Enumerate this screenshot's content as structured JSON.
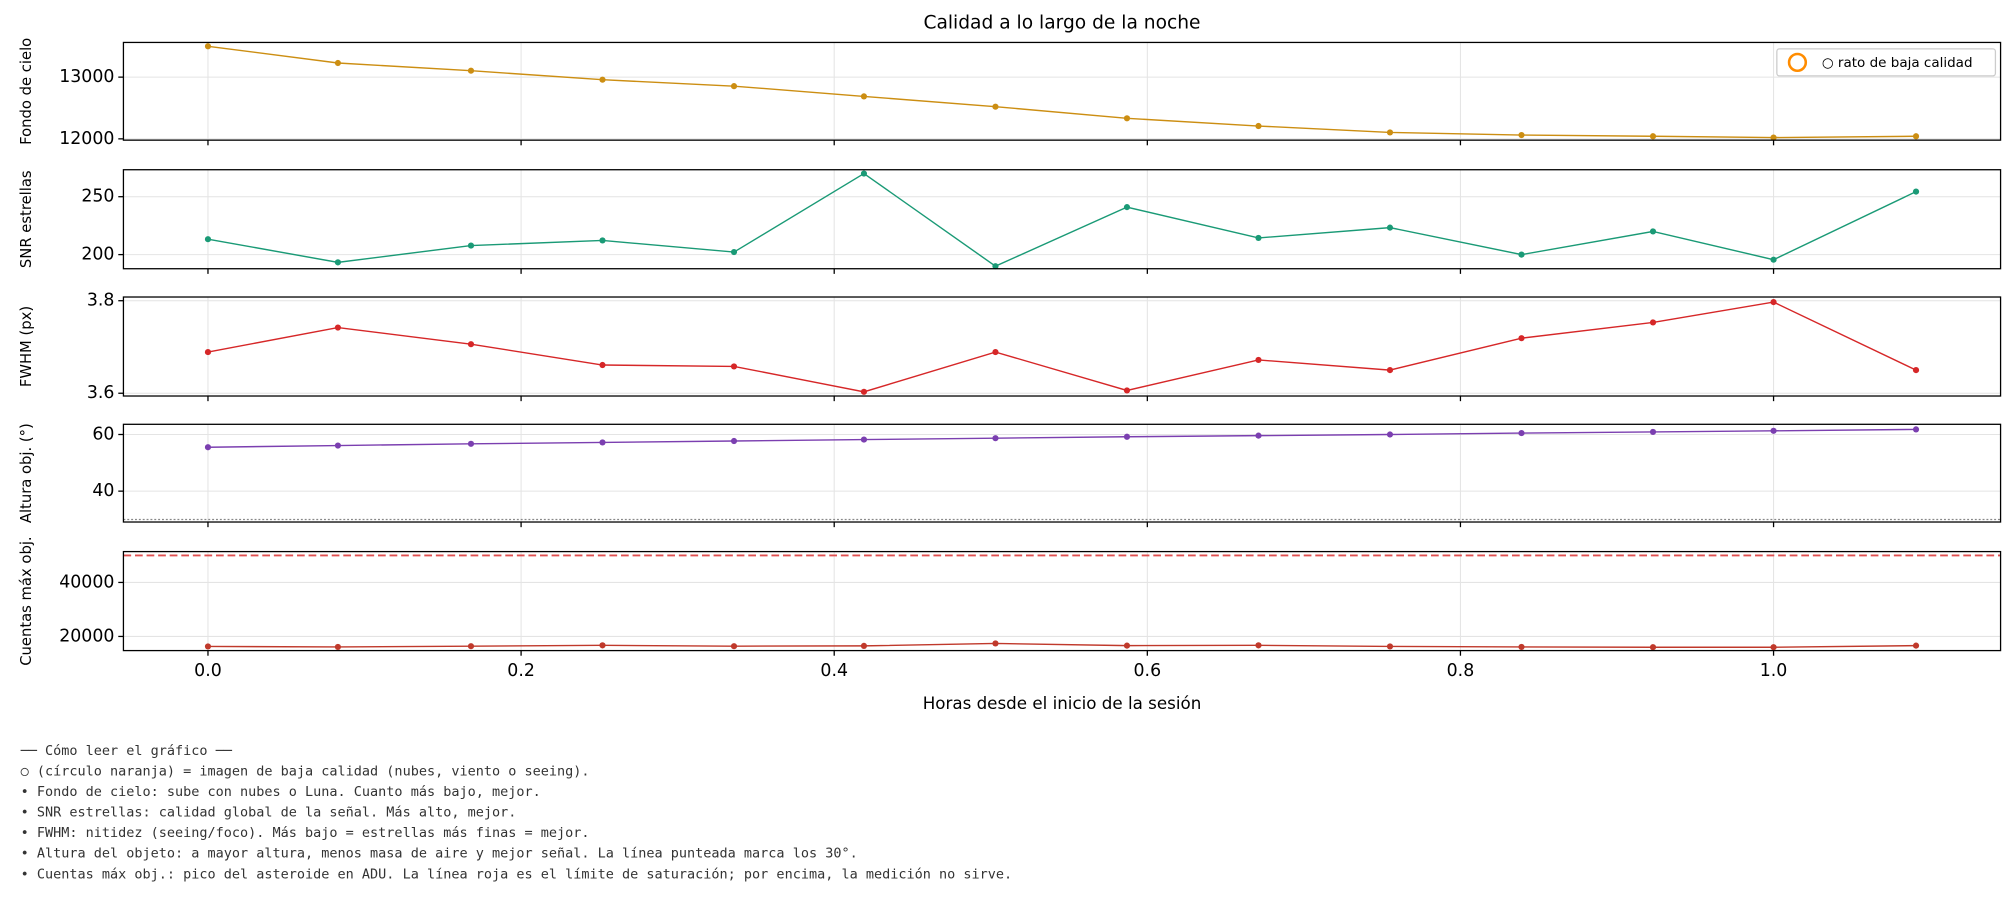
{
  "figure": {
    "title": "Calidad a lo largo de la noche",
    "xlabel": "Horas desde el inicio de la sesión",
    "x": [
      0,
      0.083,
      0.168,
      0.252,
      0.336,
      0.419,
      0.503,
      0.587,
      0.671,
      0.755,
      0.839,
      0.923,
      1.0,
      1.091
    ],
    "xlim": [
      -0.054,
      1.145
    ],
    "xticks": [
      {
        "value": 0,
        "label": "0.0"
      },
      {
        "value": 0.2,
        "label": "0.2"
      },
      {
        "value": 0.4,
        "label": "0.4"
      },
      {
        "value": 0.6,
        "label": "0.6"
      },
      {
        "value": 0.8,
        "label": "0.8"
      },
      {
        "value": 1.0,
        "label": "1.0"
      }
    ],
    "grid": true
  },
  "chart_data": [
    {
      "type": "line",
      "ylabel": "Fondo de cielo",
      "ylim": [
        11979,
        13562
      ],
      "yticks": [
        12000,
        13000
      ],
      "series": [
        {
          "name": "Fondo de cielo",
          "color": "#cc8e12",
          "values": [
            13500,
            13229,
            13104,
            12958,
            12854,
            12688,
            12521,
            12333,
            12208,
            12104,
            12062,
            12042,
            12021,
            12042
          ]
        }
      ],
      "legend": [
        {
          "label": "○ rato de baja calidad",
          "color": "#ff8c00"
        }
      ],
      "legend_position": "upper right"
    },
    {
      "type": "line",
      "ylabel": "SNR estrellas",
      "ylim": [
        187.8,
        273.3
      ],
      "yticks": [
        200,
        250
      ],
      "series": [
        {
          "name": "SNR estrellas",
          "color": "#1a9a76",
          "values": [
            213.3,
            193.3,
            207.8,
            212.2,
            202.2,
            270,
            190,
            241,
            214.4,
            223.3,
            200,
            220,
            195.6,
            254.4
          ]
        }
      ]
    },
    {
      "type": "line",
      "ylabel": "FWHM (px)",
      "ylim": [
        3.594,
        3.808
      ],
      "yticks": [
        3.6,
        3.8
      ],
      "series": [
        {
          "name": "FWHM (px)",
          "color": "#d62728",
          "values": [
            3.689,
            3.742,
            3.706,
            3.661,
            3.658,
            3.603,
            3.689,
            3.606,
            3.672,
            3.65,
            3.719,
            3.753,
            3.797,
            3.65
          ]
        }
      ]
    },
    {
      "type": "line",
      "ylabel": "Altura obj. (°)",
      "ylim": [
        29.1,
        63.6
      ],
      "yticks": [
        40,
        60
      ],
      "series": [
        {
          "name": "Altura obj. (°)",
          "color": "#7b3fb0",
          "values": [
            55.5,
            56.1,
            56.7,
            57.2,
            57.7,
            58.2,
            58.7,
            59.2,
            59.6,
            60.0,
            60.5,
            60.9,
            61.3,
            61.8
          ]
        }
      ],
      "reference_lines": [
        {
          "value": 30,
          "color": "#888888",
          "style": "dotted"
        }
      ]
    },
    {
      "type": "line",
      "ylabel": "Cuentas máx obj.",
      "ylim": [
        14762,
        51429
      ],
      "yticks": [
        20000,
        40000
      ],
      "series": [
        {
          "name": "Cuentas máx obj.",
          "color": "#c0392b",
          "values": [
            16300,
            16100,
            16400,
            16700,
            16400,
            16500,
            17400,
            16600,
            16700,
            16300,
            16100,
            16000,
            16000,
            16600
          ]
        }
      ],
      "reference_lines": [
        {
          "value": 50000,
          "color": "#e05050",
          "style": "dashed"
        }
      ]
    }
  ],
  "notes": [
    "── Cómo leer el gráfico ──",
    "○ (círculo naranja) = imagen de baja calidad (nubes, viento o seeing).",
    "• Fondo de cielo: sube con nubes o Luna. Cuanto más bajo, mejor.",
    "• SNR estrellas: calidad global de la señal. Más alto, mejor.",
    "• FWHM: nitidez (seeing/foco). Más bajo = estrellas más finas = mejor.",
    "• Altura del objeto: a mayor altura, menos masa de aire y mejor señal. La línea punteada marca los 30°.",
    "• Cuentas máx obj.: pico del asteroide en ADU. La línea roja es el límite de saturación; por encima, la medición no sirve."
  ]
}
